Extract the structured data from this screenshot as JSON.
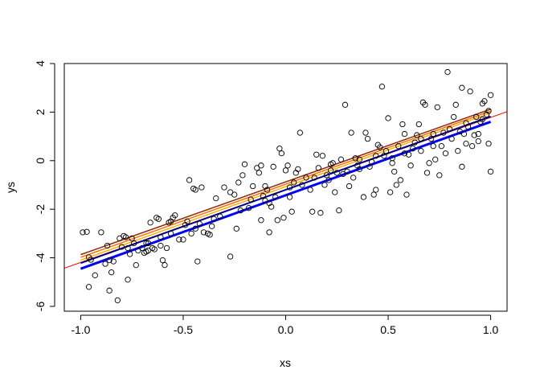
{
  "chart_data": {
    "type": "scatter",
    "xlabel": "xs",
    "ylabel": "ys",
    "xlim": [
      -1.08,
      1.08
    ],
    "ylim": [
      -6.2,
      4.0
    ],
    "x_ticks": [
      -1.0,
      -0.5,
      0.0,
      0.5,
      1.0
    ],
    "x_tick_labels": [
      "-1.0",
      "-0.5",
      "0.0",
      "0.5",
      "1.0"
    ],
    "y_ticks": [
      -6,
      -4,
      -2,
      0,
      2,
      4
    ],
    "y_tick_labels": [
      "-6",
      "-4",
      "-2",
      "0",
      "2",
      "4"
    ],
    "grid": false,
    "legend": "none",
    "points": [
      [
        -0.99,
        -2.95
      ],
      [
        -0.97,
        -2.93
      ],
      [
        -0.96,
        -3.98
      ],
      [
        -0.95,
        -4.08
      ],
      [
        -0.96,
        -5.2
      ],
      [
        -0.93,
        -4.72
      ],
      [
        -0.9,
        -2.95
      ],
      [
        -0.87,
        -3.5
      ],
      [
        -0.86,
        -4.1
      ],
      [
        -0.85,
        -4.6
      ],
      [
        -0.84,
        -4.15
      ],
      [
        -0.86,
        -5.35
      ],
      [
        -0.82,
        -5.75
      ],
      [
        -0.81,
        -3.2
      ],
      [
        -0.8,
        -3.55
      ],
      [
        -0.79,
        -3.1
      ],
      [
        -0.78,
        -3.15
      ],
      [
        -0.77,
        -4.9
      ],
      [
        -0.77,
        -3.6
      ],
      [
        -0.75,
        -3.2
      ],
      [
        -0.74,
        -3.4
      ],
      [
        -0.73,
        -4.3
      ],
      [
        -0.72,
        -3.7
      ],
      [
        -0.7,
        -3.6
      ],
      [
        -0.69,
        -3.8
      ],
      [
        -0.68,
        -3.75
      ],
      [
        -0.67,
        -3.4
      ],
      [
        -0.67,
        -3.7
      ],
      [
        -0.66,
        -2.55
      ],
      [
        -0.65,
        -3.6
      ],
      [
        -0.64,
        -3.65
      ],
      [
        -0.63,
        -2.35
      ],
      [
        -0.62,
        -2.4
      ],
      [
        -0.61,
        -3.15
      ],
      [
        -0.61,
        -3.5
      ],
      [
        -0.6,
        -4.1
      ],
      [
        -0.59,
        -4.3
      ],
      [
        -0.58,
        -3.6
      ],
      [
        -0.57,
        -2.55
      ],
      [
        -0.56,
        -2.5
      ],
      [
        -0.55,
        -2.35
      ],
      [
        -0.54,
        -2.25
      ],
      [
        -0.52,
        -3.25
      ],
      [
        -0.5,
        -3.25
      ],
      [
        -0.49,
        -2.65
      ],
      [
        -0.48,
        -2.5
      ],
      [
        -0.47,
        -0.8
      ],
      [
        -0.46,
        -3.0
      ],
      [
        -0.45,
        -1.15
      ],
      [
        -0.44,
        -1.2
      ],
      [
        -0.43,
        -4.15
      ],
      [
        -0.42,
        -2.6
      ],
      [
        -0.41,
        -1.1
      ],
      [
        -0.4,
        -2.95
      ],
      [
        -0.38,
        -3.0
      ],
      [
        -0.37,
        -3.05
      ],
      [
        -0.36,
        -2.7
      ],
      [
        -0.35,
        -2.4
      ],
      [
        -0.34,
        -1.55
      ],
      [
        -0.3,
        -1.1
      ],
      [
        -0.27,
        -1.3
      ],
      [
        -0.27,
        -3.95
      ],
      [
        -0.25,
        -1.4
      ],
      [
        -0.24,
        -2.8
      ],
      [
        -0.23,
        -0.9
      ],
      [
        -0.21,
        -0.6
      ],
      [
        -0.2,
        -0.15
      ],
      [
        -0.18,
        -1.95
      ],
      [
        -0.17,
        -1.6
      ],
      [
        -0.16,
        -1.05
      ],
      [
        -0.14,
        -0.3
      ],
      [
        -0.13,
        -0.5
      ],
      [
        -0.12,
        -0.2
      ],
      [
        -0.12,
        -2.45
      ],
      [
        -0.11,
        -1.45
      ],
      [
        -0.1,
        -1.05
      ],
      [
        -0.09,
        -1.2
      ],
      [
        -0.08,
        -1.75
      ],
      [
        -0.08,
        -2.95
      ],
      [
        -0.07,
        -1.9
      ],
      [
        -0.06,
        -0.25
      ],
      [
        -0.05,
        -1.5
      ],
      [
        -0.04,
        -2.45
      ],
      [
        -0.03,
        0.5
      ],
      [
        -0.02,
        0.3
      ],
      [
        -0.01,
        -2.35
      ],
      [
        0.0,
        -0.4
      ],
      [
        0.01,
        -0.2
      ],
      [
        0.02,
        -1.5
      ],
      [
        0.03,
        -2.1
      ],
      [
        0.04,
        -0.9
      ],
      [
        0.05,
        -0.5
      ],
      [
        0.06,
        -0.35
      ],
      [
        0.07,
        1.15
      ],
      [
        0.08,
        -1.0
      ],
      [
        0.1,
        -0.7
      ],
      [
        0.12,
        -1.2
      ],
      [
        0.13,
        -2.1
      ],
      [
        0.15,
        0.25
      ],
      [
        0.16,
        -0.3
      ],
      [
        0.17,
        -2.15
      ],
      [
        0.18,
        0.2
      ],
      [
        0.19,
        -1.0
      ],
      [
        0.2,
        -0.6
      ],
      [
        0.21,
        -0.8
      ],
      [
        0.22,
        -0.15
      ],
      [
        0.23,
        -0.1
      ],
      [
        0.24,
        -1.3
      ],
      [
        0.25,
        -0.5
      ],
      [
        0.26,
        -2.05
      ],
      [
        0.27,
        0.05
      ],
      [
        0.28,
        -0.55
      ],
      [
        0.29,
        2.3
      ],
      [
        0.3,
        -0.45
      ],
      [
        0.31,
        -1.05
      ],
      [
        0.32,
        1.15
      ],
      [
        0.33,
        -0.7
      ],
      [
        0.34,
        0.1
      ],
      [
        0.35,
        -0.2
      ],
      [
        0.36,
        -0.35
      ],
      [
        0.38,
        -1.5
      ],
      [
        0.39,
        1.15
      ],
      [
        0.4,
        0.9
      ],
      [
        0.41,
        -0.25
      ],
      [
        0.42,
        -0.05
      ],
      [
        0.43,
        -1.4
      ],
      [
        0.44,
        -1.2
      ],
      [
        0.45,
        0.65
      ],
      [
        0.46,
        0.55
      ],
      [
        0.47,
        3.05
      ],
      [
        0.48,
        0.2
      ],
      [
        0.49,
        0.4
      ],
      [
        0.5,
        1.75
      ],
      [
        0.51,
        -1.3
      ],
      [
        0.52,
        0.1
      ],
      [
        0.53,
        -0.45
      ],
      [
        0.54,
        -1.0
      ],
      [
        0.55,
        0.6
      ],
      [
        0.56,
        -0.8
      ],
      [
        0.57,
        1.5
      ],
      [
        0.58,
        1.1
      ],
      [
        0.59,
        -1.4
      ],
      [
        0.6,
        0.25
      ],
      [
        0.61,
        -0.2
      ],
      [
        0.62,
        0.5
      ],
      [
        0.63,
        0.75
      ],
      [
        0.64,
        1.05
      ],
      [
        0.65,
        1.5
      ],
      [
        0.66,
        0.4
      ],
      [
        0.67,
        2.4
      ],
      [
        0.68,
        2.3
      ],
      [
        0.69,
        -0.5
      ],
      [
        0.7,
        -0.1
      ],
      [
        0.71,
        0.9
      ],
      [
        0.72,
        1.1
      ],
      [
        0.73,
        0.05
      ],
      [
        0.74,
        2.2
      ],
      [
        0.75,
        -0.6
      ],
      [
        0.76,
        0.6
      ],
      [
        0.77,
        1.15
      ],
      [
        0.78,
        0.3
      ],
      [
        0.79,
        3.65
      ],
      [
        0.8,
        1.3
      ],
      [
        0.81,
        0.9
      ],
      [
        0.82,
        1.8
      ],
      [
        0.83,
        2.3
      ],
      [
        0.84,
        0.4
      ],
      [
        0.85,
        1.2
      ],
      [
        0.86,
        3.0
      ],
      [
        0.86,
        -0.25
      ],
      [
        0.87,
        1.1
      ],
      [
        0.88,
        0.7
      ],
      [
        0.89,
        1.4
      ],
      [
        0.9,
        2.85
      ],
      [
        0.91,
        0.6
      ],
      [
        0.92,
        1.05
      ],
      [
        0.93,
        1.8
      ],
      [
        0.94,
        0.8
      ],
      [
        0.95,
        1.6
      ],
      [
        0.96,
        2.35
      ],
      [
        0.97,
        2.45
      ],
      [
        0.98,
        1.9
      ],
      [
        0.99,
        2.05
      ],
      [
        0.99,
        0.7
      ],
      [
        1.0,
        2.7
      ],
      [
        1.0,
        -0.45
      ],
      [
        0.96,
        1.7
      ],
      [
        0.94,
        1.1
      ],
      [
        0.88,
        1.55
      ],
      [
        0.72,
        0.6
      ],
      [
        0.66,
        0.9
      ],
      [
        0.58,
        0.3
      ],
      [
        0.52,
        -0.1
      ],
      [
        0.44,
        0.2
      ],
      [
        0.36,
        0.05
      ],
      [
        0.22,
        -0.4
      ],
      [
        0.14,
        -0.7
      ],
      [
        0.02,
        -1.1
      ],
      [
        -0.1,
        -1.65
      ],
      [
        -0.22,
        -2.05
      ],
      [
        -0.32,
        -2.3
      ],
      [
        -0.44,
        -2.8
      ],
      [
        -0.56,
        -3.0
      ],
      [
        -0.68,
        -3.4
      ],
      [
        -0.76,
        -3.85
      ],
      [
        -0.88,
        -4.25
      ]
    ],
    "lines": [
      {
        "color": "#ff0000",
        "width": 1,
        "segment": [
          [
            -1.08,
            -4.43
          ],
          [
            1.08,
            2.02
          ]
        ]
      },
      {
        "color": "#8b2c0a",
        "width": 1.5,
        "segment": [
          [
            -1.0,
            -3.87
          ],
          [
            1.0,
            2.12
          ]
        ]
      },
      {
        "color": "#ff6a00",
        "width": 1.5,
        "segment": [
          [
            -1.0,
            -3.98
          ],
          [
            1.0,
            2.04
          ]
        ]
      },
      {
        "color": "#ffb000",
        "width": 1.5,
        "segment": [
          [
            -1.0,
            -4.1
          ],
          [
            1.0,
            1.96
          ]
        ]
      },
      {
        "color": "#00008b",
        "width": 2,
        "segment": [
          [
            -1.0,
            -4.22
          ],
          [
            1.0,
            1.82
          ]
        ]
      },
      {
        "color": "#0000ff",
        "width": 3,
        "segment": [
          [
            -1.0,
            -4.45
          ],
          [
            1.0,
            1.6
          ]
        ]
      }
    ]
  }
}
